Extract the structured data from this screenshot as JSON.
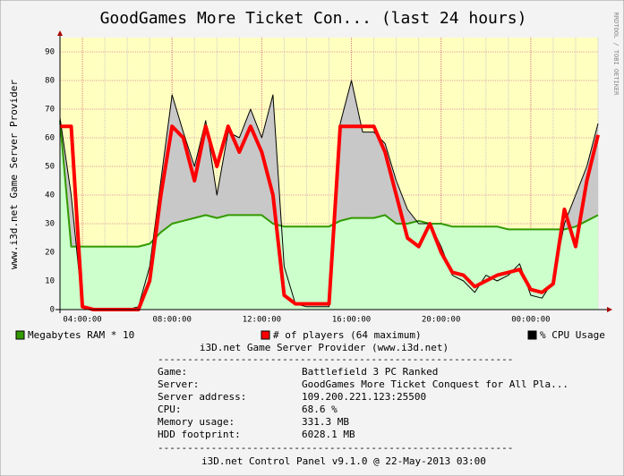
{
  "chart_data": {
    "type": "line",
    "title": "GoodGames More Ticket Con... (last 24 hours)",
    "y_label": "www.i3d.net Game Server Provider",
    "side_note": "RRDTOOL / TOBI OETIKER",
    "x": [
      3,
      3.5,
      4,
      4.5,
      5,
      5.5,
      6,
      6.5,
      7,
      7.5,
      8,
      8.5,
      9,
      9.5,
      10,
      10.5,
      11,
      11.5,
      12,
      12.5,
      13,
      13.5,
      14,
      14.5,
      15,
      15.5,
      16,
      16.5,
      17,
      17.5,
      18,
      18.5,
      19,
      19.5,
      20,
      20.5,
      21,
      21.5,
      22,
      22.5,
      23,
      23.5,
      24,
      24.5,
      25,
      25.5,
      26,
      26.5,
      27
    ],
    "xlim": [
      3,
      27
    ],
    "xticks": [
      {
        "value": 4,
        "label": "04:00:00"
      },
      {
        "value": 8,
        "label": "08:00:00"
      },
      {
        "value": 12,
        "label": "12:00:00"
      },
      {
        "value": 16,
        "label": "16:00:00"
      },
      {
        "value": 20,
        "label": "20:00:00"
      },
      {
        "value": 24,
        "label": "00:00:00"
      }
    ],
    "ylim": [
      0,
      95
    ],
    "yticks": [
      0,
      10,
      20,
      30,
      40,
      50,
      60,
      70,
      80,
      90
    ],
    "grid": true,
    "series": [
      {
        "name": "Megabytes RAM * 10",
        "color": "#339900",
        "fill_color": "#ccffcc",
        "line_width": 2,
        "values": [
          66,
          22,
          22,
          22,
          22,
          22,
          22,
          22,
          23,
          27,
          30,
          31,
          32,
          33,
          32,
          33,
          33,
          33,
          33,
          30,
          29,
          29,
          29,
          29,
          29,
          31,
          32,
          32,
          32,
          33,
          30,
          30,
          31,
          30,
          30,
          29,
          29,
          29,
          29,
          29,
          28,
          28,
          28,
          28,
          28,
          28,
          29,
          31,
          33
        ]
      },
      {
        "name": "# of players (64 maximum)",
        "color": "#ff0000",
        "line_width": 4,
        "values": [
          64,
          64,
          1,
          0,
          0,
          0,
          0,
          0,
          10,
          40,
          64,
          60,
          45,
          64,
          50,
          64,
          55,
          64,
          55,
          40,
          5,
          2,
          2,
          2,
          2,
          64,
          64,
          64,
          64,
          55,
          40,
          25,
          22,
          30,
          20,
          13,
          12,
          8,
          10,
          12,
          13,
          14,
          7,
          6,
          9,
          35,
          22,
          45,
          61
        ]
      },
      {
        "name": "% CPU Usage",
        "color": "#000000",
        "fill_color": "#c8c8c8",
        "line_width": 1,
        "values": [
          67,
          40,
          1,
          0,
          0,
          0,
          0,
          1,
          15,
          45,
          75,
          62,
          50,
          66,
          40,
          62,
          60,
          70,
          60,
          75,
          15,
          2,
          1,
          1,
          1,
          65,
          80,
          62,
          62,
          58,
          45,
          35,
          30,
          30,
          22,
          12,
          10,
          6,
          12,
          10,
          12,
          16,
          5,
          4,
          10,
          30,
          40,
          50,
          65
        ]
      }
    ],
    "info": {
      "header": "i3D.net Game Server Provider (www.i3d.net)",
      "separator": "------------------------------------------------------------",
      "rows": [
        [
          "Game:",
          "Battlefield 3 PC Ranked"
        ],
        [
          "Server:",
          "GoodGames More Ticket Conquest for All Pla..."
        ],
        [
          "Server address:",
          "109.200.221.123:25500"
        ],
        [
          "CPU:",
          "68.6 %"
        ],
        [
          "Memory usage:",
          "331.3 MB"
        ],
        [
          "HDD footprint:",
          "6028.1 MB"
        ]
      ],
      "separator_bottom": "------------------------------------------------------------",
      "footer": "i3D.net Control Panel v9.1.0 @ 22-May-2013 03:00"
    }
  }
}
